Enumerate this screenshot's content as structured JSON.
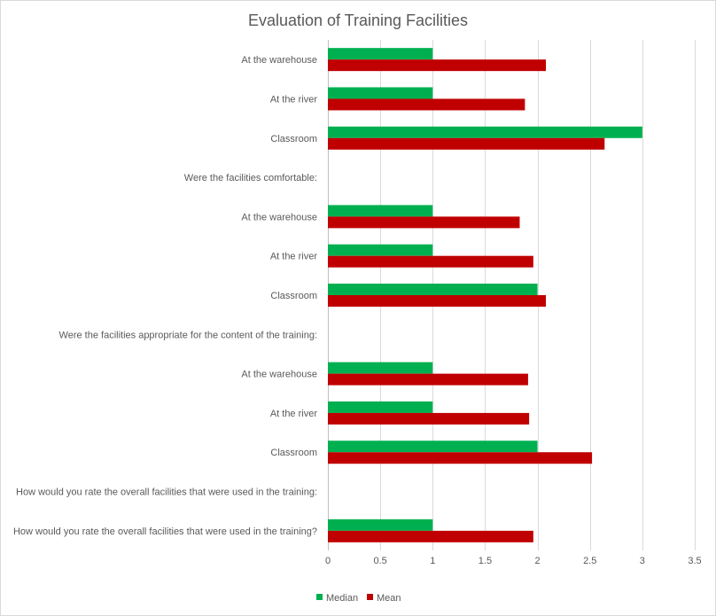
{
  "chart_data": {
    "type": "bar",
    "orientation": "horizontal",
    "title": "Evaluation of Training Facilities",
    "xlabel": "",
    "ylabel": "",
    "xlim": [
      0,
      3.5
    ],
    "xticks": [
      "0",
      "0.5",
      "1",
      "1.5",
      "2",
      "2.5",
      "3",
      "3.5"
    ],
    "grid": true,
    "legend_position": "bottom",
    "categories": [
      "At the warehouse",
      "At the river",
      "Classroom",
      "Were the facilities comfortable:",
      "At the warehouse",
      "At the river",
      "Classroom",
      "Were the facilities appropriate for the content of the training:",
      "At the warehouse",
      "At the river",
      "Classroom",
      "How would you rate the overall facilities that were used in the training:",
      "How would you rate the overall facilities that were used in the training?"
    ],
    "series": [
      {
        "name": "Median",
        "color": "#00b050",
        "values": [
          1,
          1,
          3,
          null,
          1,
          1,
          2,
          null,
          1,
          1,
          2,
          null,
          1
        ]
      },
      {
        "name": "Mean",
        "color": "#c00000",
        "values": [
          2.08,
          1.88,
          2.64,
          null,
          1.83,
          1.96,
          2.08,
          null,
          1.91,
          1.92,
          2.52,
          null,
          1.96
        ]
      }
    ]
  }
}
